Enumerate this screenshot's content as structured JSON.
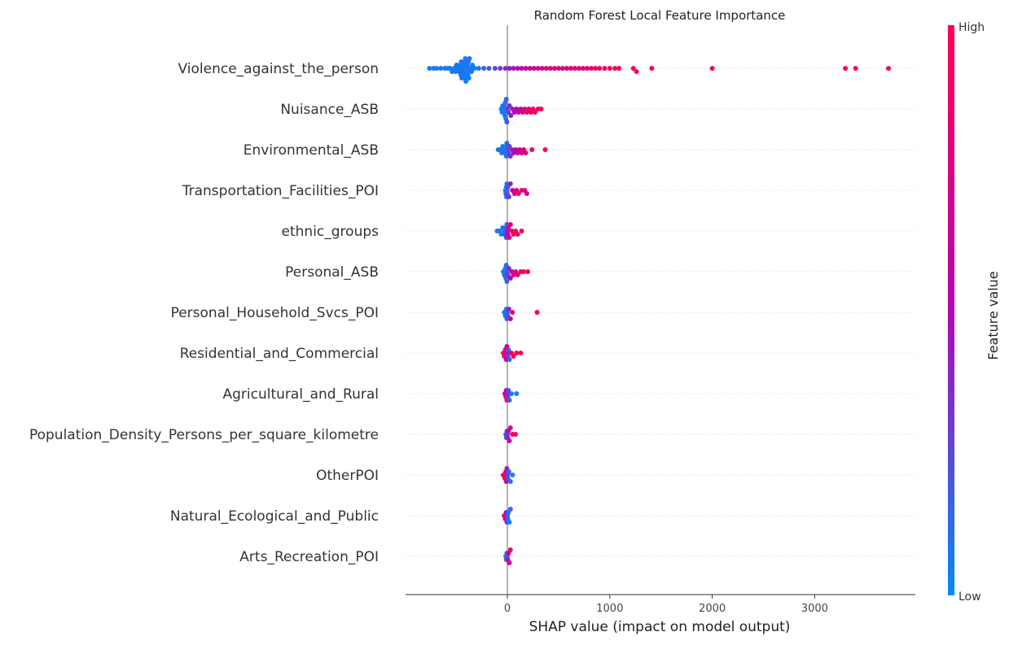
{
  "chart_data": {
    "type": "scatter",
    "subtype": "shap-beeswarm",
    "title": "Random Forest Local Feature Importance",
    "xlabel": "SHAP value (impact on model output)",
    "ylabel": "",
    "xlim": [
      -500,
      4000
    ],
    "xticks": [
      0,
      1000,
      2000,
      3000
    ],
    "grid": false,
    "features": [
      {
        "name": "Violence_against_the_person",
        "points": [
          {
            "x": -760,
            "v": 0.05
          },
          {
            "x": -720,
            "v": 0.1
          },
          {
            "x": -690,
            "v": 0.05
          },
          {
            "x": -650,
            "v": 0.08
          },
          {
            "x": -610,
            "v": 0.05
          },
          {
            "x": -580,
            "v": 0.1
          },
          {
            "x": -560,
            "v": 0.06
          },
          {
            "x": -540,
            "v": 0.05
          },
          {
            "x": -520,
            "v": 0.08
          },
          {
            "x": -505,
            "v": 0.05
          },
          {
            "x": -495,
            "v": 0.1
          },
          {
            "x": -480,
            "v": 0.05
          },
          {
            "x": -470,
            "v": 0.07
          },
          {
            "x": -460,
            "v": 0.05
          },
          {
            "x": -455,
            "v": 0.1
          },
          {
            "x": -450,
            "v": 0.04
          },
          {
            "x": -445,
            "v": 0.08
          },
          {
            "x": -440,
            "v": 0.05
          },
          {
            "x": -435,
            "v": 0.12
          },
          {
            "x": -430,
            "v": 0.05
          },
          {
            "x": -425,
            "v": 0.06
          },
          {
            "x": -420,
            "v": 0.1
          },
          {
            "x": -415,
            "v": 0.05
          },
          {
            "x": -410,
            "v": 0.08
          },
          {
            "x": -405,
            "v": 0.05
          },
          {
            "x": -400,
            "v": 0.1
          },
          {
            "x": -395,
            "v": 0.05
          },
          {
            "x": -390,
            "v": 0.06
          },
          {
            "x": -385,
            "v": 0.05
          },
          {
            "x": -380,
            "v": 0.1
          },
          {
            "x": -375,
            "v": 0.05
          },
          {
            "x": -370,
            "v": 0.08
          },
          {
            "x": -360,
            "v": 0.05
          },
          {
            "x": -350,
            "v": 0.1
          },
          {
            "x": -340,
            "v": 0.06
          },
          {
            "x": -320,
            "v": 0.05
          },
          {
            "x": -280,
            "v": 0.12
          },
          {
            "x": -230,
            "v": 0.15
          },
          {
            "x": -180,
            "v": 0.2
          },
          {
            "x": -120,
            "v": 0.25
          },
          {
            "x": -70,
            "v": 0.3
          },
          {
            "x": -20,
            "v": 0.35
          },
          {
            "x": 20,
            "v": 0.4
          },
          {
            "x": 60,
            "v": 0.45
          },
          {
            "x": 100,
            "v": 0.5
          },
          {
            "x": 140,
            "v": 0.55
          },
          {
            "x": 180,
            "v": 0.6
          },
          {
            "x": 220,
            "v": 0.62
          },
          {
            "x": 260,
            "v": 0.65
          },
          {
            "x": 300,
            "v": 0.68
          },
          {
            "x": 340,
            "v": 0.7
          },
          {
            "x": 380,
            "v": 0.72
          },
          {
            "x": 420,
            "v": 0.74
          },
          {
            "x": 460,
            "v": 0.76
          },
          {
            "x": 500,
            "v": 0.78
          },
          {
            "x": 540,
            "v": 0.8
          },
          {
            "x": 580,
            "v": 0.82
          },
          {
            "x": 620,
            "v": 0.84
          },
          {
            "x": 660,
            "v": 0.85
          },
          {
            "x": 700,
            "v": 0.86
          },
          {
            "x": 740,
            "v": 0.87
          },
          {
            "x": 780,
            "v": 0.88
          },
          {
            "x": 820,
            "v": 0.9
          },
          {
            "x": 860,
            "v": 0.9
          },
          {
            "x": 900,
            "v": 0.92
          },
          {
            "x": 950,
            "v": 0.93
          },
          {
            "x": 1000,
            "v": 0.94
          },
          {
            "x": 1050,
            "v": 0.95
          },
          {
            "x": 1090,
            "v": 0.96
          },
          {
            "x": 1230,
            "v": 0.97
          },
          {
            "x": 1260,
            "v": 0.97
          },
          {
            "x": 1410,
            "v": 0.98
          },
          {
            "x": 2000,
            "v": 0.99
          },
          {
            "x": 3300,
            "v": 1.0
          },
          {
            "x": 3400,
            "v": 1.0
          },
          {
            "x": 3720,
            "v": 1.0
          }
        ]
      },
      {
        "name": "Nuisance_ASB",
        "points": [
          {
            "x": -60,
            "v": 0.05
          },
          {
            "x": -50,
            "v": 0.1
          },
          {
            "x": -45,
            "v": 0.05
          },
          {
            "x": -40,
            "v": 0.08
          },
          {
            "x": -35,
            "v": 0.05
          },
          {
            "x": -30,
            "v": 0.12
          },
          {
            "x": -25,
            "v": 0.06
          },
          {
            "x": -20,
            "v": 0.1
          },
          {
            "x": -15,
            "v": 0.05
          },
          {
            "x": -10,
            "v": 0.15
          },
          {
            "x": -5,
            "v": 0.2
          },
          {
            "x": 0,
            "v": 0.25
          },
          {
            "x": 10,
            "v": 0.3
          },
          {
            "x": 20,
            "v": 0.35
          },
          {
            "x": 35,
            "v": 0.4
          },
          {
            "x": 50,
            "v": 0.45
          },
          {
            "x": 70,
            "v": 0.5
          },
          {
            "x": 90,
            "v": 0.55
          },
          {
            "x": 110,
            "v": 0.6
          },
          {
            "x": 130,
            "v": 0.65
          },
          {
            "x": 150,
            "v": 0.7
          },
          {
            "x": 170,
            "v": 0.75
          },
          {
            "x": 190,
            "v": 0.8
          },
          {
            "x": 210,
            "v": 0.85
          },
          {
            "x": 230,
            "v": 0.88
          },
          {
            "x": 250,
            "v": 0.9
          },
          {
            "x": 270,
            "v": 0.93
          },
          {
            "x": 300,
            "v": 0.96
          },
          {
            "x": 330,
            "v": 0.98
          }
        ]
      },
      {
        "name": "Environmental_ASB",
        "points": [
          {
            "x": -90,
            "v": 0.05
          },
          {
            "x": -70,
            "v": 0.1
          },
          {
            "x": -55,
            "v": 0.06
          },
          {
            "x": -45,
            "v": 0.08
          },
          {
            "x": -35,
            "v": 0.05
          },
          {
            "x": -25,
            "v": 0.12
          },
          {
            "x": -15,
            "v": 0.05
          },
          {
            "x": -10,
            "v": 0.1
          },
          {
            "x": -5,
            "v": 0.15
          },
          {
            "x": 0,
            "v": 0.2
          },
          {
            "x": 10,
            "v": 0.25
          },
          {
            "x": 20,
            "v": 0.3
          },
          {
            "x": 30,
            "v": 0.35
          },
          {
            "x": 45,
            "v": 0.4
          },
          {
            "x": 60,
            "v": 0.45
          },
          {
            "x": 80,
            "v": 0.5
          },
          {
            "x": 100,
            "v": 0.6
          },
          {
            "x": 120,
            "v": 0.7
          },
          {
            "x": 140,
            "v": 0.75
          },
          {
            "x": 160,
            "v": 0.8
          },
          {
            "x": 180,
            "v": 0.85
          },
          {
            "x": 240,
            "v": 0.92
          },
          {
            "x": 370,
            "v": 0.98
          }
        ]
      },
      {
        "name": "Transportation_Facilities_POI",
        "points": [
          {
            "x": -20,
            "v": 0.05
          },
          {
            "x": -15,
            "v": 0.1
          },
          {
            "x": -10,
            "v": 0.06
          },
          {
            "x": -8,
            "v": 0.12
          },
          {
            "x": -5,
            "v": 0.08
          },
          {
            "x": -3,
            "v": 0.15
          },
          {
            "x": 0,
            "v": 0.2
          },
          {
            "x": 5,
            "v": 0.25
          },
          {
            "x": 15,
            "v": 0.3
          },
          {
            "x": 30,
            "v": 0.4
          },
          {
            "x": 50,
            "v": 0.55
          },
          {
            "x": 70,
            "v": 0.7
          },
          {
            "x": 90,
            "v": 0.8
          },
          {
            "x": 110,
            "v": 0.85
          },
          {
            "x": 140,
            "v": 0.9
          },
          {
            "x": 170,
            "v": 0.75
          },
          {
            "x": 190,
            "v": 0.6
          }
        ]
      },
      {
        "name": "ethnic_groups",
        "points": [
          {
            "x": -100,
            "v": 0.05
          },
          {
            "x": -80,
            "v": 0.1
          },
          {
            "x": -60,
            "v": 0.06
          },
          {
            "x": -45,
            "v": 0.12
          },
          {
            "x": -35,
            "v": 0.08
          },
          {
            "x": -25,
            "v": 0.2
          },
          {
            "x": -15,
            "v": 0.1
          },
          {
            "x": -10,
            "v": 0.3
          },
          {
            "x": -5,
            "v": 0.15
          },
          {
            "x": 0,
            "v": 0.4
          },
          {
            "x": 5,
            "v": 0.55
          },
          {
            "x": 10,
            "v": 0.7
          },
          {
            "x": 20,
            "v": 0.8
          },
          {
            "x": 30,
            "v": 0.85
          },
          {
            "x": 45,
            "v": 0.9
          },
          {
            "x": 60,
            "v": 0.92
          },
          {
            "x": 80,
            "v": 0.95
          },
          {
            "x": 100,
            "v": 0.96
          },
          {
            "x": 140,
            "v": 0.98
          }
        ]
      },
      {
        "name": "Personal_ASB",
        "points": [
          {
            "x": -40,
            "v": 0.05
          },
          {
            "x": -30,
            "v": 0.1
          },
          {
            "x": -20,
            "v": 0.06
          },
          {
            "x": -15,
            "v": 0.12
          },
          {
            "x": -10,
            "v": 0.08
          },
          {
            "x": -5,
            "v": 0.15
          },
          {
            "x": 0,
            "v": 0.2
          },
          {
            "x": 5,
            "v": 0.3
          },
          {
            "x": 15,
            "v": 0.4
          },
          {
            "x": 30,
            "v": 0.5
          },
          {
            "x": 45,
            "v": 0.6
          },
          {
            "x": 60,
            "v": 0.7
          },
          {
            "x": 80,
            "v": 0.8
          },
          {
            "x": 100,
            "v": 0.85
          },
          {
            "x": 130,
            "v": 0.9
          },
          {
            "x": 160,
            "v": 0.94
          },
          {
            "x": 200,
            "v": 0.97
          }
        ]
      },
      {
        "name": "Personal_Household_Svcs_POI",
        "points": [
          {
            "x": -30,
            "v": 0.05
          },
          {
            "x": -20,
            "v": 0.1
          },
          {
            "x": -10,
            "v": 0.06
          },
          {
            "x": -5,
            "v": 0.12
          },
          {
            "x": 0,
            "v": 0.15
          },
          {
            "x": 5,
            "v": 0.25
          },
          {
            "x": 15,
            "v": 0.4
          },
          {
            "x": 30,
            "v": 0.6
          },
          {
            "x": 50,
            "v": 0.85
          },
          {
            "x": 290,
            "v": 0.98
          }
        ]
      },
      {
        "name": "Residential_and_Commercial",
        "points": [
          {
            "x": -40,
            "v": 0.9
          },
          {
            "x": -30,
            "v": 0.85
          },
          {
            "x": -20,
            "v": 0.8
          },
          {
            "x": -10,
            "v": 0.7
          },
          {
            "x": -5,
            "v": 0.6
          },
          {
            "x": 0,
            "v": 0.4
          },
          {
            "x": 5,
            "v": 0.3
          },
          {
            "x": 10,
            "v": 0.2
          },
          {
            "x": 20,
            "v": 0.15
          },
          {
            "x": 40,
            "v": 0.9
          },
          {
            "x": 60,
            "v": 0.92
          },
          {
            "x": 90,
            "v": 0.95
          },
          {
            "x": 130,
            "v": 0.98
          }
        ]
      },
      {
        "name": "Agricultural_and_Rural",
        "points": [
          {
            "x": -25,
            "v": 0.7
          },
          {
            "x": -15,
            "v": 0.8
          },
          {
            "x": -10,
            "v": 0.5
          },
          {
            "x": -5,
            "v": 0.9
          },
          {
            "x": 0,
            "v": 0.4
          },
          {
            "x": 5,
            "v": 0.3
          },
          {
            "x": 10,
            "v": 0.2
          },
          {
            "x": 20,
            "v": 0.15
          },
          {
            "x": 40,
            "v": 0.1
          },
          {
            "x": 90,
            "v": 0.05
          }
        ]
      },
      {
        "name": "Population_Density_Persons_per_square_kilometre",
        "points": [
          {
            "x": -15,
            "v": 0.1
          },
          {
            "x": -10,
            "v": 0.2
          },
          {
            "x": -5,
            "v": 0.15
          },
          {
            "x": 0,
            "v": 0.3
          },
          {
            "x": 5,
            "v": 0.4
          },
          {
            "x": 10,
            "v": 0.5
          },
          {
            "x": 20,
            "v": 0.6
          },
          {
            "x": 30,
            "v": 0.8
          },
          {
            "x": 50,
            "v": 0.85
          },
          {
            "x": 80,
            "v": 0.95
          }
        ]
      },
      {
        "name": "OtherPOI",
        "points": [
          {
            "x": -40,
            "v": 0.98
          },
          {
            "x": -25,
            "v": 0.9
          },
          {
            "x": -15,
            "v": 0.8
          },
          {
            "x": -10,
            "v": 0.6
          },
          {
            "x": -5,
            "v": 0.4
          },
          {
            "x": 0,
            "v": 0.3
          },
          {
            "x": 5,
            "v": 0.2
          },
          {
            "x": 15,
            "v": 0.15
          },
          {
            "x": 30,
            "v": 0.1
          },
          {
            "x": 50,
            "v": 0.05
          }
        ]
      },
      {
        "name": "Natural_Ecological_and_Public",
        "points": [
          {
            "x": -30,
            "v": 0.8
          },
          {
            "x": -20,
            "v": 0.7
          },
          {
            "x": -10,
            "v": 0.5
          },
          {
            "x": -5,
            "v": 0.3
          },
          {
            "x": 0,
            "v": 0.2
          },
          {
            "x": 5,
            "v": 0.15
          },
          {
            "x": 10,
            "v": 0.1
          },
          {
            "x": 20,
            "v": 0.05
          },
          {
            "x": 30,
            "v": 0.1
          }
        ]
      },
      {
        "name": "Arts_Recreation_POI",
        "points": [
          {
            "x": -15,
            "v": 0.05
          },
          {
            "x": -10,
            "v": 0.1
          },
          {
            "x": -5,
            "v": 0.15
          },
          {
            "x": 0,
            "v": 0.2
          },
          {
            "x": 5,
            "v": 0.4
          },
          {
            "x": 10,
            "v": 0.6
          },
          {
            "x": 20,
            "v": 0.8
          },
          {
            "x": 30,
            "v": 0.95
          }
        ]
      }
    ],
    "colorbar": {
      "label": "Feature value",
      "high_label": "High",
      "low_label": "Low",
      "low_color": "#008bfb",
      "mid_color": "#b505b5",
      "high_color": "#ff0052"
    },
    "legend": "right"
  }
}
